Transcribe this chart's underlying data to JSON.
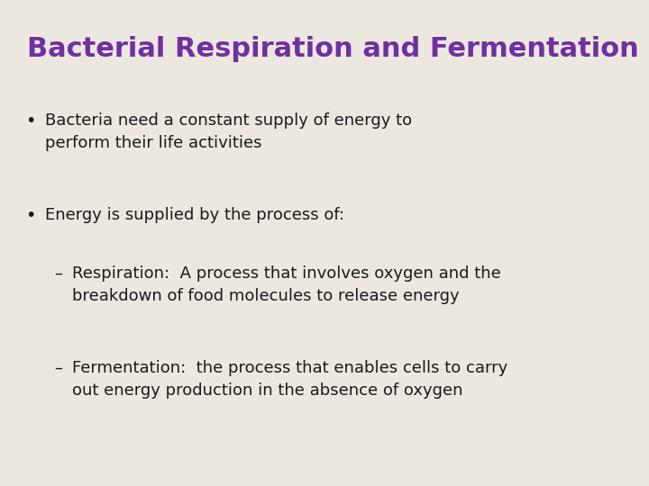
{
  "background_color": "#ece8e0",
  "title": "Bacterial Respiration and Fermentation",
  "title_color": "#7030a0",
  "title_fontsize": 22,
  "bullet1": "Bacteria need a constant supply of energy to\nperform their life activities",
  "bullet2": "Energy is supplied by the process of:",
  "sub1": "Respiration:  A process that involves oxygen and the\nbreakdown of food molecules to release energy",
  "sub2": "Fermentation:  the process that enables cells to carry\nout energy production in the absence of oxygen",
  "body_color": "#1a1a1a",
  "body_fontsize": 13,
  "bullet_marker": "•",
  "dash_marker": "–"
}
